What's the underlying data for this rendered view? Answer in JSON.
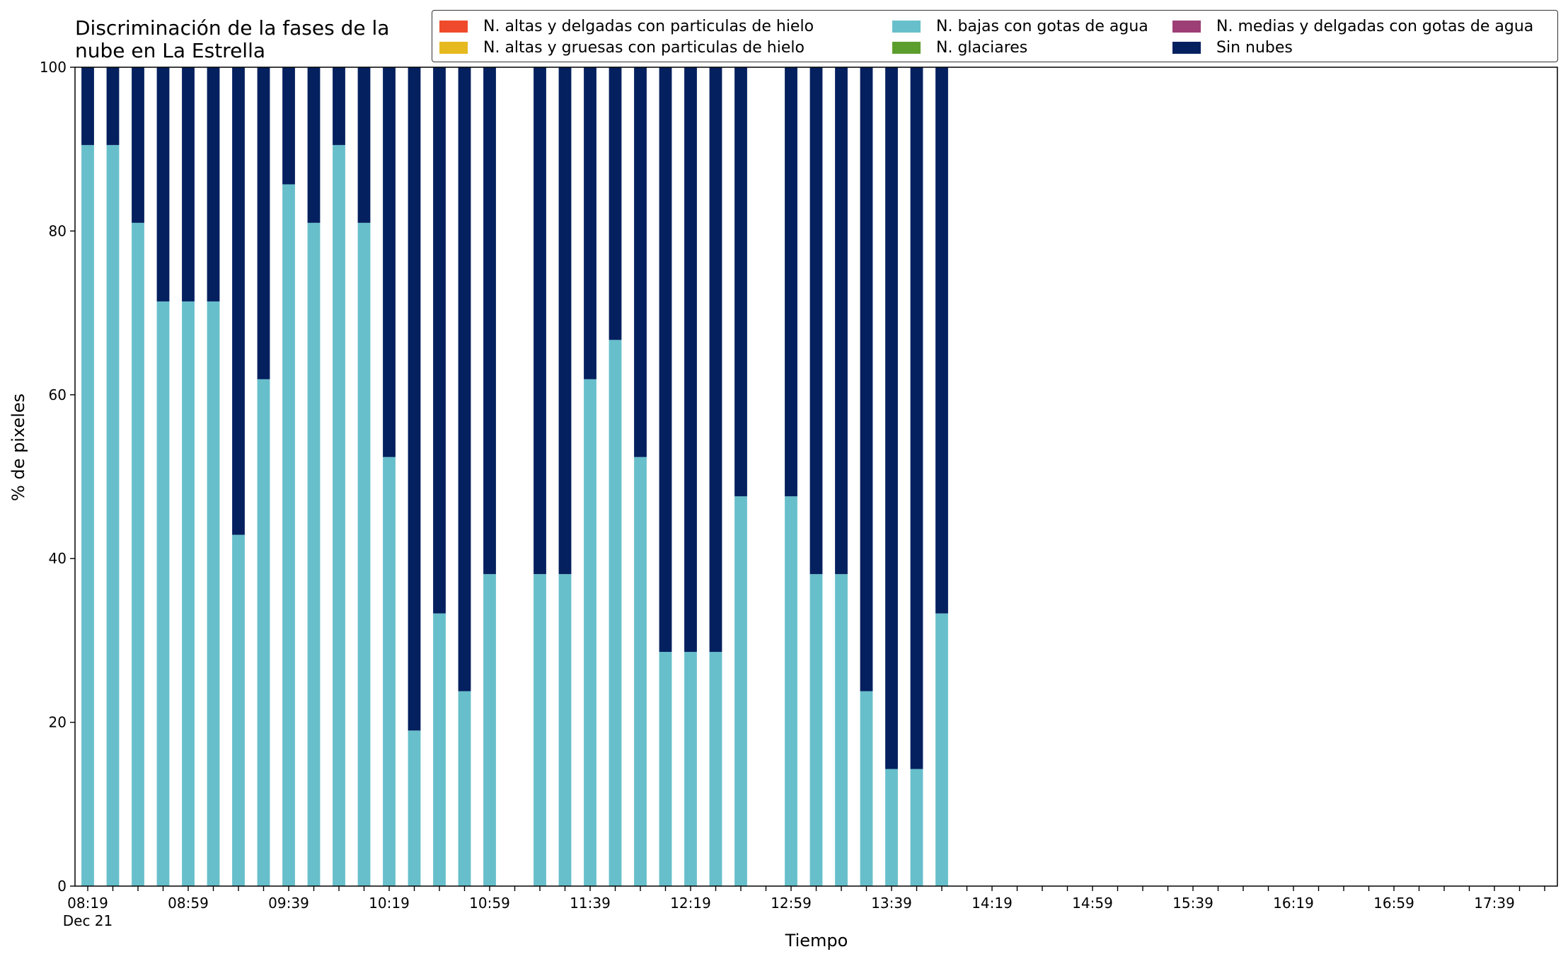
{
  "chart_data": {
    "type": "bar",
    "stacked": true,
    "title": "Discriminación de la fases de la\nnube en La Estrella",
    "xlabel": "Tiempo",
    "ylabel": "% de pixeles",
    "ylim": [
      0,
      100
    ],
    "yticks": [
      0,
      20,
      40,
      60,
      80,
      100
    ],
    "x_ticks_major": [
      "08:19",
      "08:59",
      "09:39",
      "10:19",
      "10:59",
      "11:39",
      "12:19",
      "12:59",
      "13:39",
      "14:19",
      "14:59",
      "15:39",
      "16:19",
      "16:59",
      "17:39"
    ],
    "x_tick_sublabel": "Dec 21",
    "grid": false,
    "legend_placement": "top-right",
    "categories": [
      "08:19",
      "08:29",
      "08:39",
      "08:49",
      "08:59",
      "09:09",
      "09:19",
      "09:29",
      "09:39",
      "09:49",
      "09:59",
      "10:09",
      "10:19",
      "10:29",
      "10:39",
      "10:49",
      "10:59",
      "11:09",
      "11:19",
      "11:29",
      "11:39",
      "11:49",
      "11:59",
      "12:09",
      "12:19",
      "12:29",
      "12:39",
      "12:49",
      "12:59",
      "13:09",
      "13:19",
      "13:29",
      "13:39",
      "13:49",
      "13:59",
      "14:09",
      "14:19",
      "14:29",
      "14:39",
      "14:49",
      "14:59",
      "15:09",
      "15:19",
      "15:29",
      "15:39",
      "15:49",
      "15:59",
      "16:09",
      "16:19",
      "16:29",
      "16:39",
      "16:49",
      "16:59",
      "17:09",
      "17:19",
      "17:29",
      "17:39",
      "17:49",
      "17:59"
    ],
    "series": [
      {
        "name": "N. altas y delgadas con particulas de hielo",
        "color": "#ef4a2b",
        "values": [
          0,
          0,
          0,
          0,
          0,
          0,
          0,
          0,
          0,
          0,
          0,
          0,
          0,
          0,
          0,
          0,
          0,
          null,
          0,
          0,
          0,
          0,
          0,
          0,
          0,
          0,
          0,
          null,
          0,
          0,
          0,
          0,
          0,
          0,
          0,
          null,
          null,
          null,
          null,
          null,
          null,
          null,
          null,
          null,
          null,
          null,
          null,
          null,
          null,
          null,
          null,
          null,
          null,
          null,
          null,
          null,
          null,
          null,
          null
        ]
      },
      {
        "name": "N. altas y gruesas con particulas de hielo",
        "color": "#e6b91e",
        "values": [
          0,
          0,
          0,
          0,
          0,
          0,
          0,
          0,
          0,
          0,
          0,
          0,
          0,
          0,
          0,
          0,
          0,
          null,
          0,
          0,
          0,
          0,
          0,
          0,
          0,
          0,
          0,
          null,
          0,
          0,
          0,
          0,
          0,
          0,
          0,
          null,
          null,
          null,
          null,
          null,
          null,
          null,
          null,
          null,
          null,
          null,
          null,
          null,
          null,
          null,
          null,
          null,
          null,
          null,
          null,
          null,
          null,
          null,
          null
        ]
      },
      {
        "name": "N. bajas con gotas de agua",
        "color": "#67bfcb",
        "values": [
          90.5,
          90.5,
          81,
          71.4,
          71.4,
          71.4,
          42.9,
          61.9,
          85.7,
          81,
          90.5,
          81,
          52.4,
          19,
          33.3,
          23.8,
          38.1,
          null,
          38.1,
          38.1,
          61.9,
          66.7,
          52.4,
          28.6,
          28.6,
          28.6,
          47.6,
          null,
          47.6,
          38.1,
          38.1,
          23.8,
          14.3,
          14.3,
          33.3,
          null,
          null,
          null,
          null,
          null,
          null,
          null,
          null,
          null,
          null,
          null,
          null,
          null,
          null,
          null,
          null,
          null,
          null,
          null,
          null,
          null,
          null,
          null,
          null
        ]
      },
      {
        "name": "N. glaciares",
        "color": "#5c9e2e",
        "values": [
          0,
          0,
          0,
          0,
          0,
          0,
          0,
          0,
          0,
          0,
          0,
          0,
          0,
          0,
          0,
          0,
          0,
          null,
          0,
          0,
          0,
          0,
          0,
          0,
          0,
          0,
          0,
          null,
          0,
          0,
          0,
          0,
          0,
          0,
          0,
          null,
          null,
          null,
          null,
          null,
          null,
          null,
          null,
          null,
          null,
          null,
          null,
          null,
          null,
          null,
          null,
          null,
          null,
          null,
          null,
          null,
          null,
          null,
          null
        ]
      },
      {
        "name": "N. medias y delgadas con gotas de agua",
        "color": "#9d3f76",
        "values": [
          0,
          0,
          0,
          0,
          0,
          0,
          0,
          0,
          0,
          0,
          0,
          0,
          0,
          0,
          0,
          0,
          0,
          null,
          0,
          0,
          0,
          0,
          0,
          0,
          0,
          0,
          0,
          null,
          0,
          0,
          0,
          0,
          0,
          0,
          0,
          null,
          null,
          null,
          null,
          null,
          null,
          null,
          null,
          null,
          null,
          null,
          null,
          null,
          null,
          null,
          null,
          null,
          null,
          null,
          null,
          null,
          null,
          null,
          null
        ]
      },
      {
        "name": "Sin nubes",
        "color": "#04205f",
        "values": [
          9.5,
          9.5,
          19,
          28.6,
          28.6,
          28.6,
          57.1,
          38.1,
          14.3,
          19,
          9.5,
          19,
          47.6,
          81,
          66.7,
          76.2,
          61.9,
          null,
          61.9,
          61.9,
          38.1,
          33.3,
          47.6,
          71.4,
          71.4,
          71.4,
          52.4,
          null,
          52.4,
          61.9,
          61.9,
          76.2,
          85.7,
          85.7,
          66.7,
          null,
          null,
          null,
          null,
          null,
          null,
          null,
          null,
          null,
          null,
          null,
          null,
          null,
          null,
          null,
          null,
          null,
          null,
          null,
          null,
          null,
          null,
          null,
          null
        ]
      }
    ]
  }
}
